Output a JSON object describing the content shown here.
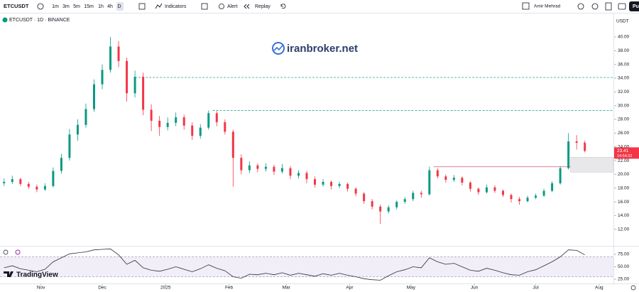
{
  "toolbar": {
    "symbol": "ETCUSDT",
    "intervals": [
      "1m",
      "3m",
      "5m",
      "15m",
      "1h",
      "4h",
      "D"
    ],
    "indicators": "Indicators",
    "alert": "Alert",
    "replay": "Replay",
    "user": "Amir Mehrad",
    "publish": "Pu"
  },
  "brand": "TradingView",
  "chart_data": [
    {
      "type": "candlestick",
      "title": "ETCUSDT · 1D · BINANCE",
      "watermark": "iranbroker.net",
      "currency": "USDT",
      "countdown": "14:54:32",
      "x": [
        2,
        6,
        10,
        14,
        18,
        22,
        26,
        30,
        34,
        38,
        42,
        46,
        50,
        54,
        58,
        62,
        66,
        70,
        74,
        78,
        82,
        86,
        90,
        94,
        98,
        102,
        106,
        110,
        114,
        118,
        122,
        126,
        130,
        134,
        138,
        142,
        146,
        150,
        154,
        158,
        162,
        166,
        170,
        174,
        178,
        182,
        186,
        190,
        194,
        198,
        202,
        206,
        210,
        214,
        218,
        222,
        226,
        230,
        234,
        238,
        242,
        246,
        250,
        254,
        258,
        262,
        266,
        270,
        274,
        278,
        282,
        286
      ],
      "open": [
        18.7,
        18.9,
        19.3,
        18.6,
        18.2,
        17.8,
        18.3,
        20.5,
        22.4,
        25.8,
        27.2,
        29.5,
        33.1,
        35.2,
        38.6,
        36.5,
        31.8,
        34.2,
        29.4,
        27.8,
        26.9,
        27.5,
        28.3,
        27.1,
        25.6,
        26.8,
        28.9,
        27.6,
        26.2,
        22.4,
        20.6,
        21.3,
        20.8,
        21.1,
        20.4,
        20.9,
        19.8,
        20.2,
        19.3,
        18.5,
        18.9,
        18.3,
        18.6,
        17.9,
        17.2,
        16.1,
        15.3,
        14.6,
        15.2,
        16.0,
        16.4,
        17.3,
        17.1,
        20.6,
        19.7,
        19.2,
        19.5,
        18.8,
        17.9,
        17.4,
        18.1,
        17.6,
        17.0,
        16.4,
        16.1,
        16.6,
        16.9,
        17.6,
        18.7,
        20.9,
        24.8,
        24.6
      ],
      "high": [
        19.4,
        19.8,
        19.5,
        18.9,
        18.5,
        18.7,
        21.0,
        23.0,
        26.6,
        28.0,
        30.3,
        33.8,
        36.0,
        40.0,
        39.4,
        37.0,
        35.1,
        34.8,
        30.2,
        28.5,
        28.3,
        29.0,
        28.7,
        27.6,
        27.3,
        29.3,
        29.2,
        28.0,
        26.5,
        22.9,
        21.9,
        21.6,
        21.6,
        21.4,
        21.5,
        21.2,
        20.6,
        20.5,
        19.7,
        19.3,
        19.1,
        18.9,
        18.8,
        18.1,
        17.4,
        16.4,
        15.6,
        15.5,
        16.2,
        16.7,
        17.6,
        17.6,
        21.1,
        20.9,
        20.0,
        19.9,
        19.7,
        19.0,
        18.1,
        18.5,
        18.4,
        17.8,
        17.2,
        16.7,
        16.9,
        17.2,
        17.9,
        19.0,
        21.2,
        26.0,
        25.7,
        24.9
      ],
      "low": [
        18.3,
        18.6,
        18.3,
        17.9,
        17.4,
        17.6,
        18.1,
        20.1,
        22.0,
        24.9,
        26.8,
        29.1,
        32.4,
        34.8,
        35.6,
        30.6,
        31.2,
        28.6,
        26.3,
        25.6,
        26.4,
        27.0,
        26.5,
        25.0,
        25.2,
        26.5,
        27.0,
        25.8,
        18.2,
        20.0,
        20.2,
        20.3,
        20.4,
        19.9,
        20.1,
        19.3,
        19.4,
        18.7,
        18.1,
        18.2,
        17.8,
        18.0,
        17.5,
        16.8,
        15.7,
        14.9,
        12.8,
        14.3,
        14.9,
        15.7,
        16.1,
        16.6,
        16.9,
        19.4,
        18.8,
        18.9,
        18.4,
        17.5,
        17.0,
        17.2,
        17.3,
        16.7,
        15.9,
        15.6,
        15.9,
        16.4,
        16.7,
        17.4,
        18.5,
        20.7,
        23.6,
        23.2
      ],
      "close": [
        18.9,
        19.3,
        18.6,
        18.2,
        17.8,
        18.3,
        20.5,
        22.4,
        25.8,
        27.2,
        29.5,
        33.1,
        35.2,
        38.6,
        36.5,
        31.8,
        34.2,
        29.4,
        27.8,
        26.9,
        27.5,
        28.3,
        27.1,
        25.6,
        26.8,
        28.9,
        27.6,
        26.2,
        22.4,
        20.6,
        21.3,
        20.8,
        21.1,
        20.4,
        20.9,
        19.8,
        20.2,
        19.3,
        18.5,
        18.9,
        18.3,
        18.6,
        17.9,
        17.2,
        16.1,
        15.3,
        14.6,
        15.2,
        16.0,
        16.4,
        17.3,
        17.1,
        20.6,
        19.7,
        19.2,
        19.5,
        18.8,
        17.9,
        17.4,
        18.1,
        17.6,
        17.0,
        16.4,
        16.1,
        16.6,
        16.9,
        17.6,
        18.7,
        20.9,
        24.8,
        24.6,
        23.41
      ],
      "up_color": "#089981",
      "down_color": "#f23645",
      "xlim": [
        0,
        300
      ],
      "xticks": [
        {
          "value": 20,
          "label": "Nov"
        },
        {
          "value": 50,
          "label": "Dec"
        },
        {
          "value": 81,
          "label": "2025"
        },
        {
          "value": 112,
          "label": "Feb"
        },
        {
          "value": 140,
          "label": "Mar"
        },
        {
          "value": 171,
          "label": "Apr"
        },
        {
          "value": 201,
          "label": "May"
        },
        {
          "value": 232,
          "label": "Jun"
        },
        {
          "value": 262,
          "label": "Jul"
        },
        {
          "value": 293,
          "label": "Aug"
        }
      ],
      "ylim": [
        9.7,
        43.1
      ],
      "yticks": [
        {
          "value": 12,
          "label": "12.00"
        },
        {
          "value": 14,
          "label": "14.00"
        },
        {
          "value": 16,
          "label": "16.00"
        },
        {
          "value": 18,
          "label": "18.00"
        },
        {
          "value": 20,
          "label": "20.00"
        },
        {
          "value": 22,
          "label": "22.00"
        },
        {
          "value": 24,
          "label": "24.00"
        },
        {
          "value": 26,
          "label": "26.00"
        },
        {
          "value": 28,
          "label": "28.00"
        },
        {
          "value": 30,
          "label": "30.00"
        },
        {
          "value": 32,
          "label": "32.00"
        },
        {
          "value": 34,
          "label": "34.00"
        },
        {
          "value": 36,
          "label": "36.00"
        },
        {
          "value": 38,
          "label": "38.00"
        },
        {
          "value": 40,
          "label": "40.00"
        }
      ],
      "levels": [
        {
          "value": 34.1,
          "start": 66,
          "color": "#26a69a",
          "dashed": true
        },
        {
          "value": 29.3,
          "start": 104,
          "color": "#26a69a",
          "dashed": true
        },
        {
          "value": 21.1,
          "start": 212,
          "end": 279,
          "color": "#d05a6b",
          "dashed": false
        }
      ],
      "zone": {
        "low": 20.3,
        "high": 22.5,
        "start": 279
      }
    },
    {
      "type": "line",
      "color": "#2a2e39",
      "x": [
        2,
        6,
        10,
        14,
        18,
        22,
        26,
        30,
        34,
        38,
        42,
        46,
        50,
        54,
        58,
        62,
        66,
        70,
        74,
        78,
        82,
        86,
        90,
        94,
        98,
        102,
        106,
        110,
        114,
        118,
        122,
        126,
        130,
        134,
        138,
        142,
        146,
        150,
        154,
        158,
        162,
        166,
        170,
        174,
        178,
        182,
        186,
        190,
        194,
        198,
        202,
        206,
        210,
        214,
        218,
        222,
        226,
        230,
        234,
        238,
        242,
        246,
        250,
        254,
        258,
        262,
        266,
        270,
        274,
        278,
        282,
        286
      ],
      "values": [
        48,
        52,
        46,
        43,
        40,
        45,
        60,
        68,
        76,
        78,
        80,
        84,
        85,
        86,
        74,
        55,
        63,
        48,
        43,
        41,
        45,
        50,
        45,
        40,
        46,
        54,
        47,
        42,
        30,
        27,
        35,
        34,
        37,
        34,
        38,
        33,
        37,
        34,
        31,
        36,
        33,
        37,
        33,
        30,
        26,
        24,
        23,
        32,
        40,
        44,
        50,
        48,
        68,
        60,
        55,
        57,
        50,
        43,
        41,
        47,
        43,
        38,
        34,
        33,
        40,
        44,
        52,
        60,
        70,
        84,
        83,
        74
      ],
      "ylim": [
        17.9,
        89.3
      ],
      "yticks": [
        {
          "value": 25,
          "label": "25.00"
        },
        {
          "value": 50,
          "label": "50.00"
        },
        {
          "value": 75,
          "label": "75.00"
        }
      ],
      "band": [
        30,
        70
      ],
      "band_color": "#7e57c2"
    }
  ]
}
